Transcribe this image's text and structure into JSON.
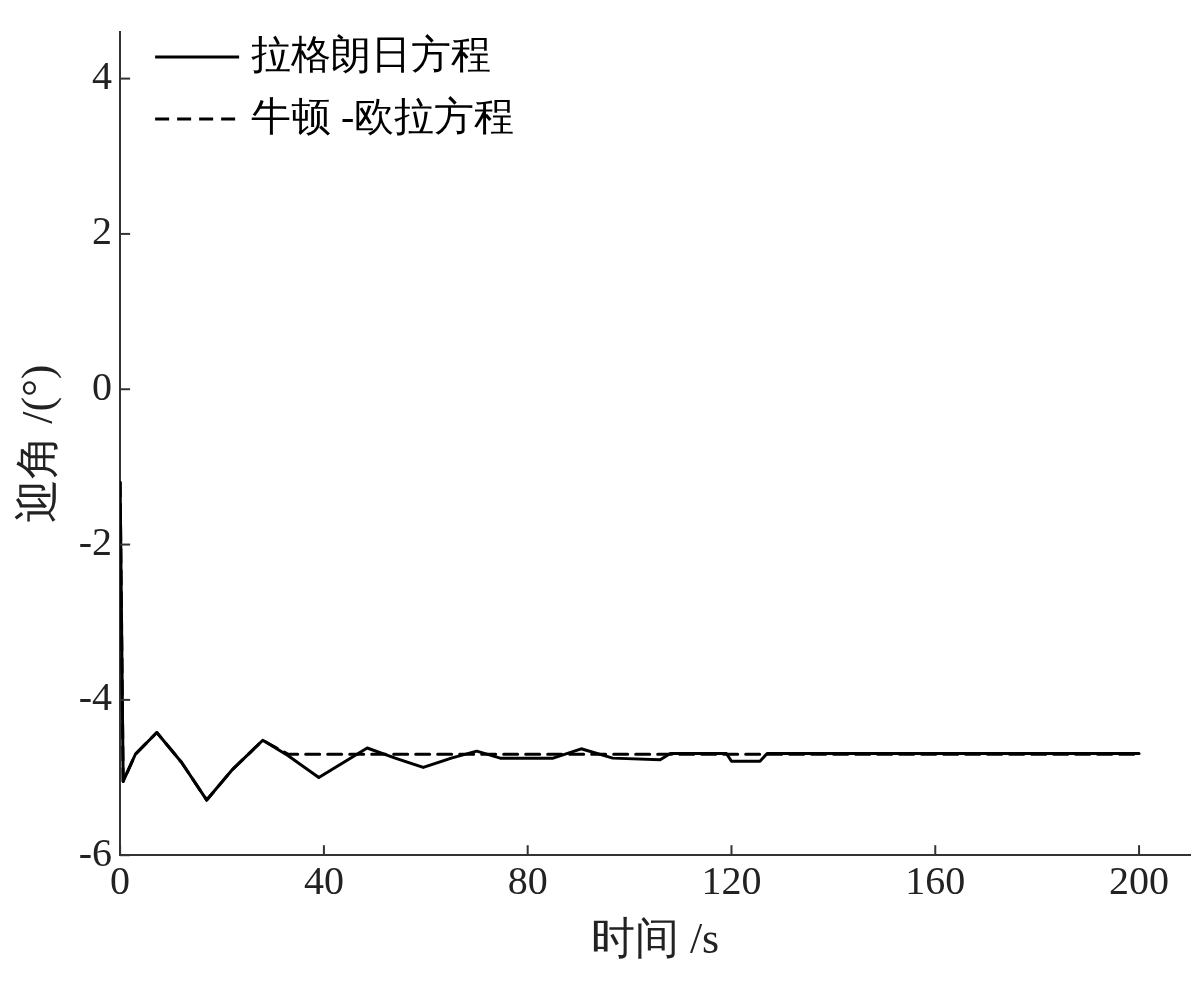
{
  "chart_data": {
    "type": "line",
    "xlabel": "时间 /s",
    "ylabel": "迎角 /(°)",
    "xlim": [
      0,
      210
    ],
    "ylim": [
      -6,
      4.6
    ],
    "xticks": [
      0,
      40,
      80,
      120,
      160,
      200
    ],
    "yticks": [
      -6,
      -4,
      -2,
      0,
      2,
      4
    ],
    "grid": false,
    "legend": "top left",
    "marker": "none",
    "series": [
      {
        "name": "拉格朗日方程",
        "color": "#000000",
        "line_style": "solid",
        "x": [
          0,
          0.6,
          3,
          7.2,
          12,
          17,
          22,
          28,
          33,
          39,
          44,
          48.5,
          54,
          59.5,
          65,
          70,
          74.6,
          85,
          90.5,
          96.7,
          106,
          108,
          119,
          120,
          125.6,
          127,
          200
        ],
        "values": [
          -1.2,
          -5.05,
          -4.7,
          -4.42,
          -4.8,
          -5.29,
          -4.9,
          -4.52,
          -4.72,
          -5.0,
          -4.8,
          -4.62,
          -4.75,
          -4.87,
          -4.75,
          -4.66,
          -4.75,
          -4.75,
          -4.63,
          -4.75,
          -4.77,
          -4.69,
          -4.69,
          -4.79,
          -4.79,
          -4.69,
          -4.69
        ]
      },
      {
        "name": "牛顿 -欧拉方程",
        "color": "#000000",
        "line_style": "dashed",
        "x": [
          0,
          0.6,
          3,
          7.2,
          12,
          17,
          22,
          28,
          33,
          200
        ],
        "values": [
          -1.2,
          -5.05,
          -4.7,
          -4.42,
          -4.8,
          -5.29,
          -4.9,
          -4.52,
          -4.7,
          -4.7
        ]
      }
    ]
  }
}
